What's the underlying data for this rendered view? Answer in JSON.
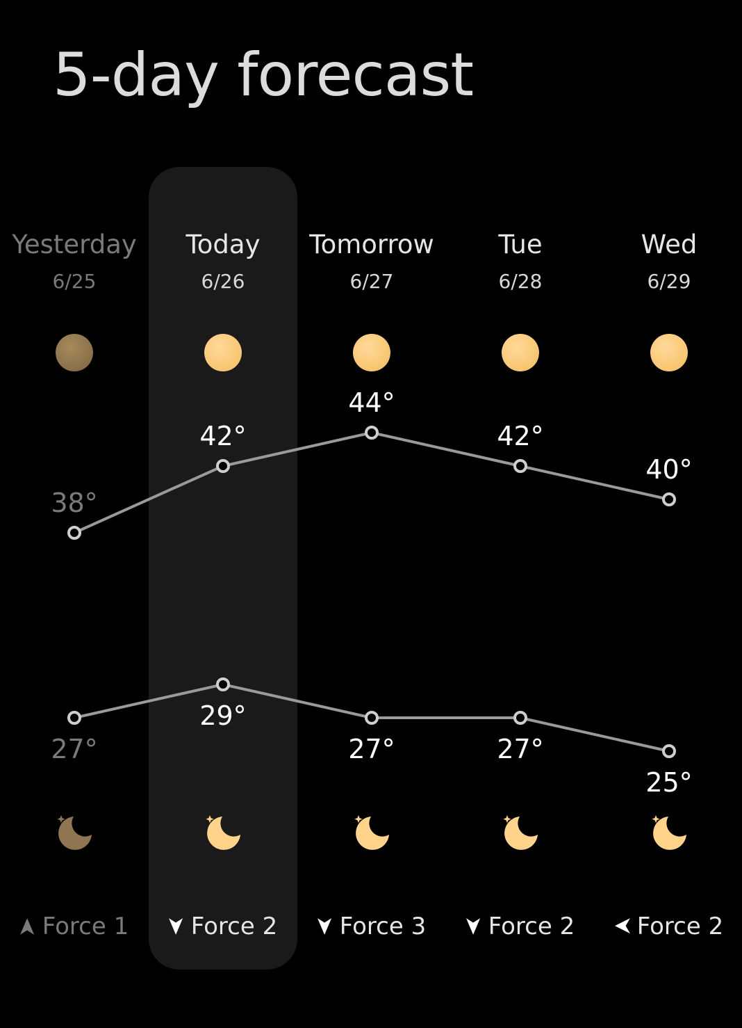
{
  "title": "5-day forecast",
  "highlight_index": 1,
  "colors": {
    "background": "#000000",
    "highlight_panel": "#1a1a1a",
    "sun_active": "#ffd38a",
    "sun_past": "#8f7650",
    "line": "#9a9a9a",
    "past_text": "#7a7a7a"
  },
  "days": [
    {
      "name": "Yesterday",
      "date": "6/25",
      "day_icon": "sun-icon",
      "night_icon": "moon-icon",
      "high": 38,
      "high_label": "38°",
      "low": 27,
      "low_label": "27°",
      "wind_direction": "north",
      "wind_icon": "wind-arrow-up-icon",
      "wind": "Force 1",
      "past": true
    },
    {
      "name": "Today",
      "date": "6/26",
      "day_icon": "sun-icon",
      "night_icon": "moon-icon",
      "high": 42,
      "high_label": "42°",
      "low": 29,
      "low_label": "29°",
      "wind_direction": "south",
      "wind_icon": "wind-arrow-down-icon",
      "wind": "Force 2",
      "past": false
    },
    {
      "name": "Tomorrow",
      "date": "6/27",
      "day_icon": "sun-icon",
      "night_icon": "moon-icon",
      "high": 44,
      "high_label": "44°",
      "low": 27,
      "low_label": "27°",
      "wind_direction": "south",
      "wind_icon": "wind-arrow-down-icon",
      "wind": "Force 3",
      "past": false
    },
    {
      "name": "Tue",
      "date": "6/28",
      "day_icon": "sun-icon",
      "night_icon": "moon-icon",
      "high": 42,
      "high_label": "42°",
      "low": 27,
      "low_label": "27°",
      "wind_direction": "south",
      "wind_icon": "wind-arrow-down-icon",
      "wind": "Force 2",
      "past": false
    },
    {
      "name": "Wed",
      "date": "6/29",
      "day_icon": "sun-icon",
      "night_icon": "moon-icon",
      "high": 40,
      "high_label": "40°",
      "low": 25,
      "low_label": "25°",
      "wind_direction": "west",
      "wind_icon": "wind-arrow-left-icon",
      "wind": "Force 2",
      "past": false
    }
  ]
}
